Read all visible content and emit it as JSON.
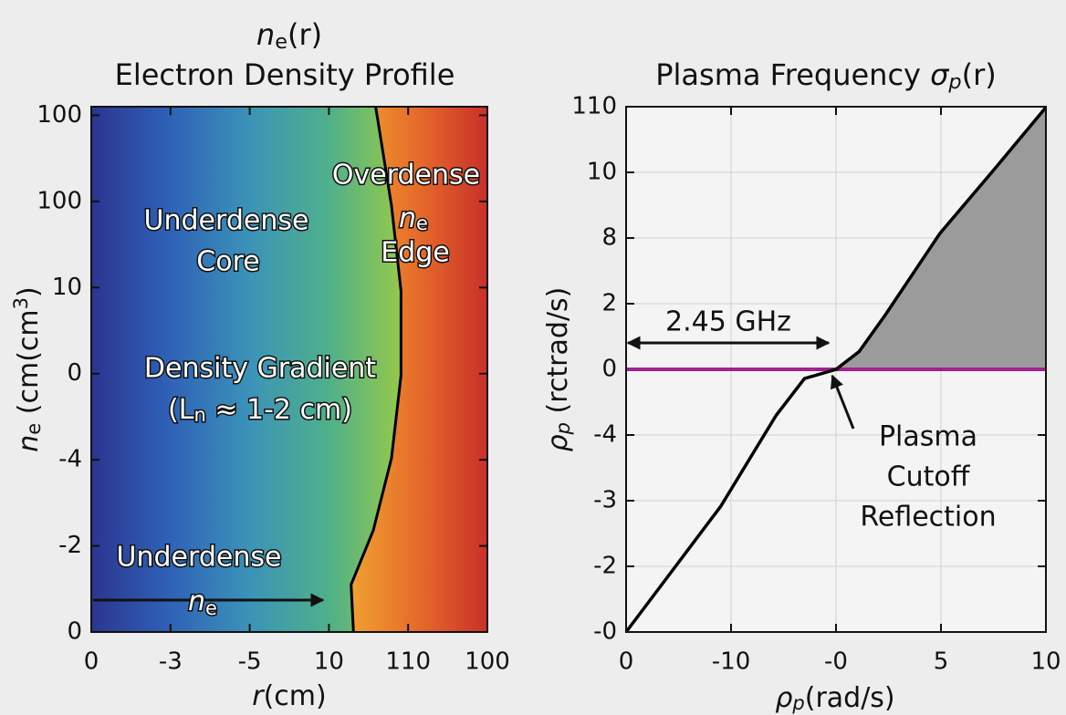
{
  "chart_data": [
    {
      "type": "heatmap",
      "title": [
        "n",
        "e",
        "(r)"
      ],
      "subtitle": "Electron Density Profile",
      "x_label": [
        "r",
        "(cm)"
      ],
      "y_label": [
        "n",
        "e",
        " (cm(cm",
        "3",
        ")"
      ],
      "xlim": [
        0,
        5
      ],
      "xticks": [
        0,
        {
          "value": 1,
          "label": "-3"
        },
        {
          "value": 2,
          "label": "-5"
        },
        {
          "value": 3,
          "label": "10"
        },
        {
          "value": 4,
          "label": "110"
        },
        {
          "value": 5,
          "label": "100"
        }
      ],
      "ylim": [
        0,
        6.1
      ],
      "yticks": [
        0,
        {
          "value": 1,
          "label": "-2"
        },
        {
          "value": 2,
          "label": "-4"
        },
        {
          "value": 3,
          "label": "0"
        },
        {
          "value": 4,
          "label": "10"
        },
        {
          "value": 5,
          "label": "100"
        },
        {
          "value": 6,
          "label": "100"
        }
      ],
      "under_colors": [
        "#2c3590",
        "#2f62b8",
        "#3b93b8",
        "#4fb08a",
        "#9ccb45",
        "#e6e23b"
      ],
      "over_colors": [
        "#f0a030",
        "#e66a2a",
        "#c9302a"
      ],
      "boundary": {
        "color": "#000000",
        "x": [
          3.59,
          3.79,
          3.91,
          3.91,
          3.79,
          3.56,
          3.28,
          3.31
        ],
        "y": [
          6.1,
          4.95,
          3.96,
          2.98,
          2.02,
          1.18,
          0.55,
          0
        ]
      },
      "annotations": {
        "overdense": "Overdense",
        "edge_symbol": [
          "n",
          "e"
        ],
        "edge": "Edge",
        "core": [
          "Underdense",
          "Core"
        ],
        "gradient": [
          "Density Gradient",
          "(L",
          "n",
          " ≈ 1-2 cm)"
        ],
        "low": [
          "Underdense",
          "n",
          "e"
        ]
      }
    },
    {
      "type": "line",
      "title": [
        "Plasma Frequency ",
        "σ",
        "p",
        "(r)"
      ],
      "x_label": [
        "ρ",
        "p",
        "(rad/s)"
      ],
      "y_label": [
        "ρ",
        "p",
        " (rctrad/s)"
      ],
      "xlim": [
        0,
        4
      ],
      "xticks": [
        0,
        {
          "value": 1,
          "label": "-10"
        },
        {
          "value": 2,
          "label": "-0"
        },
        {
          "value": 3,
          "label": "5"
        },
        {
          "value": 4,
          "label": "10"
        }
      ],
      "ylim": [
        0,
        8
      ],
      "yticks": [
        {
          "value": 0,
          "label": "-0"
        },
        {
          "value": 1,
          "label": "-2"
        },
        {
          "value": 2,
          "label": "-3"
        },
        {
          "value": 3,
          "label": "-4"
        },
        {
          "value": 4,
          "label": "0"
        },
        {
          "value": 5,
          "label": "2"
        },
        {
          "value": 6,
          "label": "8"
        },
        {
          "value": 7,
          "label": "10"
        },
        {
          "value": 8,
          "label": "110"
        }
      ],
      "grid": true,
      "series": [
        {
          "color": "#000000",
          "x": [
            0,
            0.9,
            1.43,
            1.7,
            2.0,
            2.22,
            2.47,
            2.99,
            3.51,
            4
          ],
          "values": [
            0,
            1.91,
            3.3,
            3.86,
            4.0,
            4.27,
            4.83,
            6.07,
            7.05,
            7.99
          ]
        }
      ],
      "cutoff": {
        "value": 4,
        "color": "#a3218e"
      },
      "fill_color": "#9b9b9b",
      "annotations": {
        "bandwidth": "2.45 GHz",
        "cutoff_label": [
          "Plasma",
          "Cutoff",
          "Reflection"
        ]
      }
    }
  ]
}
